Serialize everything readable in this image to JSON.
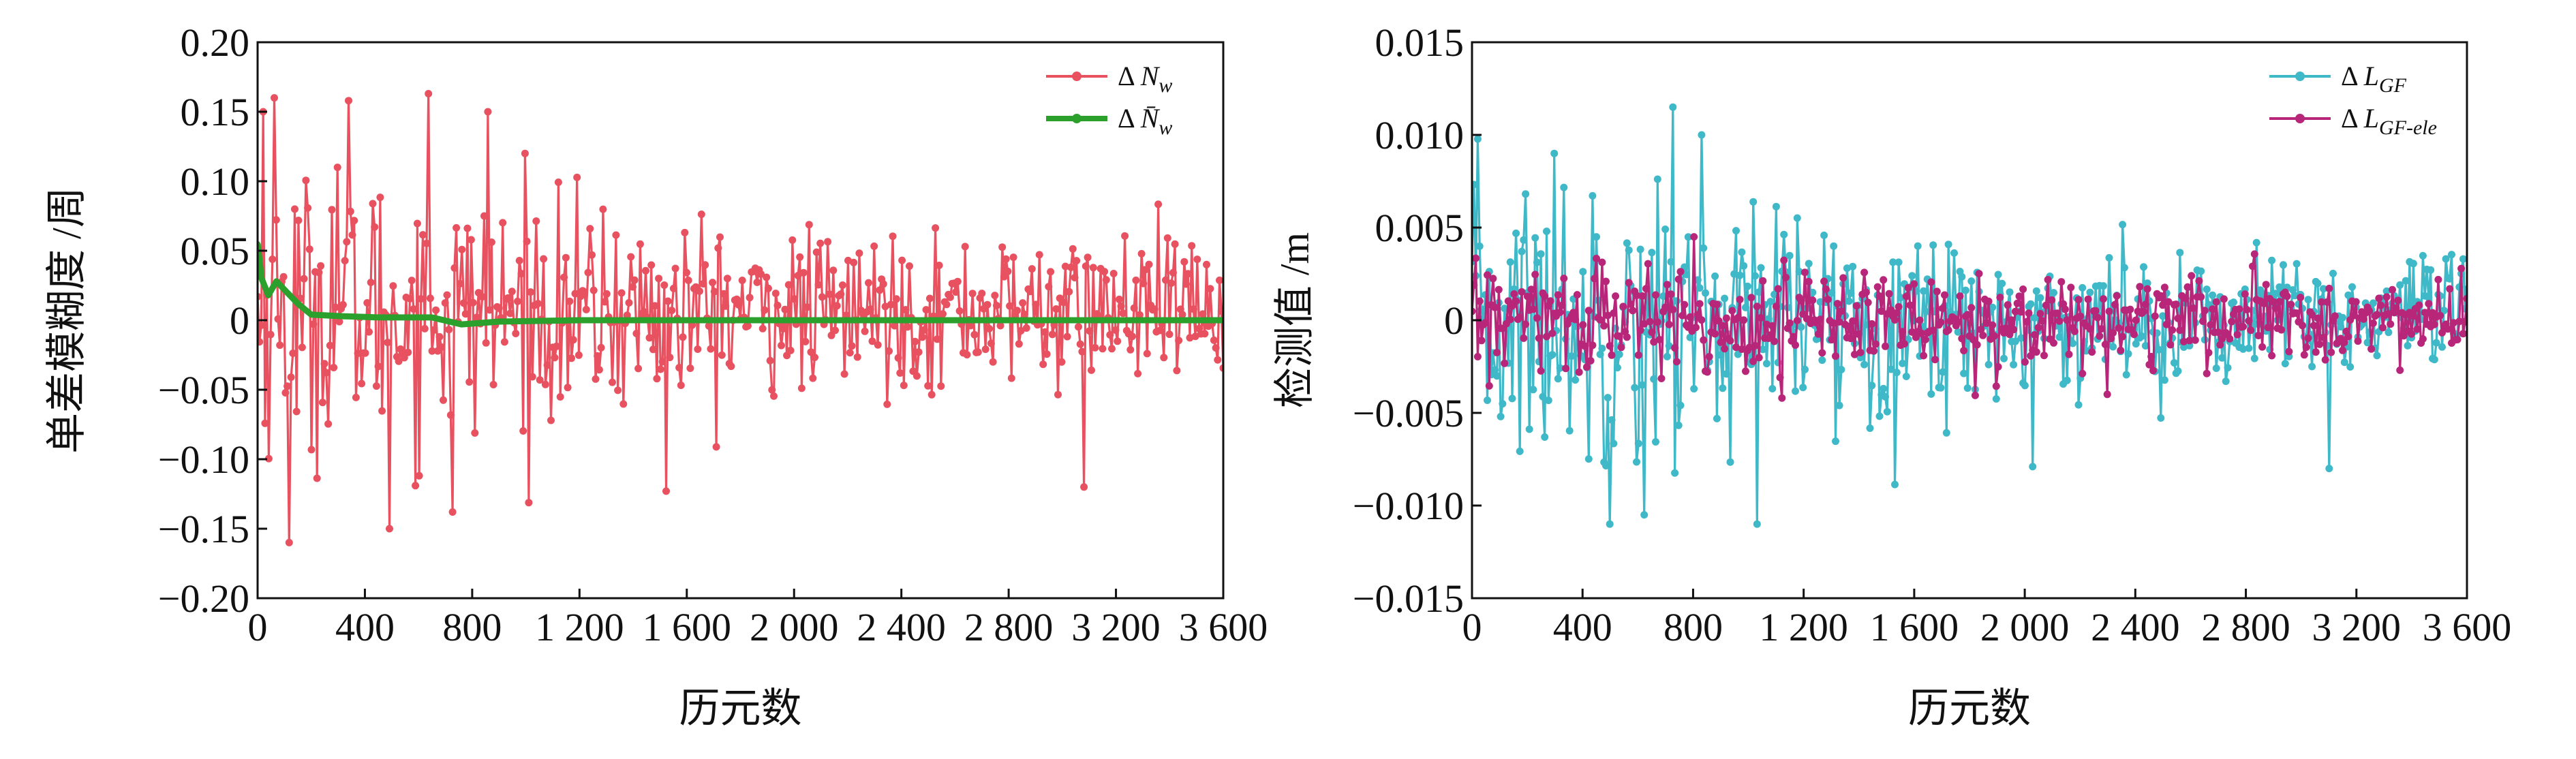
{
  "chart_data": [
    {
      "type": "line",
      "title": "",
      "xlabel": "历元数",
      "ylabel": "单差模糊度 /周",
      "xlim": [
        0,
        3600
      ],
      "ylim": [
        -0.2,
        0.2
      ],
      "x_ticks": [
        0,
        400,
        800,
        1200,
        1600,
        2000,
        2400,
        2800,
        3200,
        3600
      ],
      "x_tick_labels": [
        "0",
        "400",
        "800",
        "1 200",
        "1 600",
        "2 000",
        "2 400",
        "2 800",
        "3 200",
        "3 600"
      ],
      "y_ticks": [
        -0.2,
        -0.15,
        -0.1,
        -0.05,
        0,
        0.05,
        0.1,
        0.15,
        0.2
      ],
      "y_tick_labels": [
        "−0.20",
        "−0.15",
        "−0.10",
        "−0.05",
        "0",
        "0.05",
        "0.10",
        "0.15",
        "0.20"
      ],
      "legend": "top-right",
      "series": [
        {
          "name": "ΔN_w",
          "legend_label": {
            "prefix": "Δ",
            "main": "N",
            "sub": "w"
          },
          "color": "#e8515f",
          "kind": "noisy",
          "noise_std_start": 0.05,
          "noise_std_end": 0.026,
          "noise_mean": 0.006,
          "spikes": [
            {
              "x": 20,
              "y": 0.15
            },
            {
              "x": 60,
              "y": 0.16
            },
            {
              "x": 115,
              "y": -0.16
            },
            {
              "x": 340,
              "y": 0.158
            },
            {
              "x": 490,
              "y": -0.15
            },
            {
              "x": 640,
              "y": 0.163
            },
            {
              "x": 730,
              "y": -0.138
            },
            {
              "x": 860,
              "y": 0.15
            },
            {
              "x": 1520,
              "y": -0.123
            },
            {
              "x": 3080,
              "y": -0.12
            },
            {
              "x": 300,
              "y": 0.11
            },
            {
              "x": 1000,
              "y": 0.12
            }
          ]
        },
        {
          "name": "ΔN̄_w",
          "legend_label": {
            "prefix": "Δ",
            "main": "N̄",
            "sub": "w"
          },
          "color": "#2ca02c",
          "kind": "smooth",
          "points": [
            {
              "x": 0,
              "y": 0.055
            },
            {
              "x": 15,
              "y": 0.03
            },
            {
              "x": 40,
              "y": 0.018
            },
            {
              "x": 70,
              "y": 0.028
            },
            {
              "x": 110,
              "y": 0.02
            },
            {
              "x": 150,
              "y": 0.012
            },
            {
              "x": 200,
              "y": 0.004
            },
            {
              "x": 300,
              "y": 0.003
            },
            {
              "x": 450,
              "y": 0.002
            },
            {
              "x": 650,
              "y": 0.002
            },
            {
              "x": 760,
              "y": -0.003
            },
            {
              "x": 900,
              "y": -0.001
            },
            {
              "x": 1200,
              "y": 0.0
            },
            {
              "x": 2000,
              "y": 0.0
            },
            {
              "x": 3600,
              "y": 0.0
            }
          ]
        }
      ]
    },
    {
      "type": "line",
      "title": "",
      "xlabel": "历元数",
      "ylabel": "检测值 /m",
      "xlim": [
        0,
        3600
      ],
      "ylim": [
        -0.015,
        0.015
      ],
      "x_ticks": [
        0,
        400,
        800,
        1200,
        1600,
        2000,
        2400,
        2800,
        3200,
        3600
      ],
      "x_tick_labels": [
        "0",
        "400",
        "800",
        "1 200",
        "1 600",
        "2 000",
        "2 400",
        "2 800",
        "3 200",
        "3 600"
      ],
      "y_ticks": [
        -0.015,
        -0.01,
        -0.005,
        0,
        0.005,
        0.01,
        0.015
      ],
      "y_tick_labels": [
        "−0.015",
        "−0.010",
        "−0.005",
        "0",
        "0.005",
        "0.010",
        "0.015"
      ],
      "legend": "top-right",
      "series": [
        {
          "name": "ΔL_GF",
          "legend_label": {
            "prefix": "Δ",
            "main": "L",
            "sub": "GF"
          },
          "color": "#3fb8c8",
          "kind": "noisy",
          "noise_std_start": 0.0042,
          "noise_std_end": 0.0017,
          "noise_mean": 0.0,
          "spikes": [
            {
              "x": 730,
              "y": 0.0115
            },
            {
              "x": 500,
              "y": -0.011
            },
            {
              "x": 830,
              "y": 0.01
            },
            {
              "x": 1030,
              "y": -0.011
            },
            {
              "x": 300,
              "y": 0.009
            },
            {
              "x": 2030,
              "y": -0.0079
            },
            {
              "x": 3100,
              "y": -0.008
            },
            {
              "x": 620,
              "y": -0.0105
            }
          ]
        },
        {
          "name": "ΔL_GF-ele",
          "legend_label": {
            "prefix": "Δ",
            "main": "L",
            "sub": "GF-ele"
          },
          "color": "#b8267a",
          "kind": "noisy",
          "noise_std_start": 0.0016,
          "noise_std_end": 0.0011,
          "noise_mean": 0.0,
          "spikes": [
            {
              "x": 800,
              "y": 0.0045
            },
            {
              "x": 1120,
              "y": -0.0042
            },
            {
              "x": 2300,
              "y": -0.004
            }
          ]
        }
      ]
    }
  ]
}
